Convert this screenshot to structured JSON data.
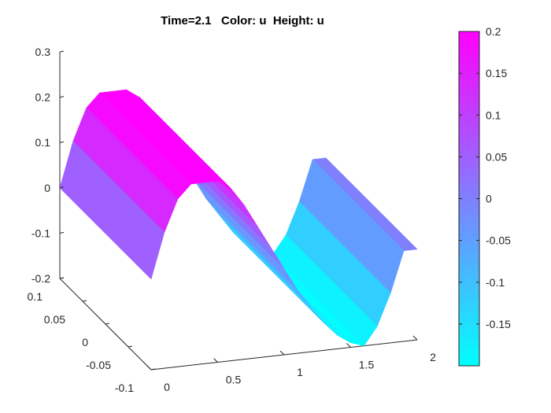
{
  "chart_data": {
    "type": "surface",
    "title": "Time=2.1   Color: u  Height: u",
    "colormap": {
      "name": "cool",
      "low_color": "#00ffff",
      "high_color": "#ff00ff"
    },
    "x_axis": {
      "label": "",
      "ticks": [
        "0",
        "0.5",
        "1",
        "1.5",
        "2"
      ],
      "range": [
        0,
        2
      ]
    },
    "y_axis": {
      "label": "",
      "ticks": [
        "-0.1",
        "-0.05",
        "0",
        "0.05",
        "0.1"
      ],
      "range": [
        -0.1,
        0.1
      ]
    },
    "z_axis": {
      "label": "",
      "ticks": [
        "-0.2",
        "-0.1",
        "0",
        "0.1",
        "0.2",
        "0.3"
      ],
      "range": [
        -0.2,
        0.3
      ]
    },
    "colorbar": {
      "ticks": [
        "0.2",
        "0.15",
        "0.1",
        "0.05",
        "0",
        "-0.05",
        "-0.1",
        "-0.15"
      ],
      "range": [
        -0.2,
        0.2
      ]
    },
    "x": [
      0,
      0.1,
      0.2,
      0.3,
      0.4,
      0.5,
      0.6,
      0.7,
      0.8,
      0.9,
      1.0,
      1.1,
      1.2,
      1.3,
      1.4,
      1.5,
      1.6,
      1.7,
      1.8,
      1.9,
      2.0
    ],
    "u": [
      0,
      0.1,
      0.17,
      0.2,
      0.2,
      0.2,
      0.18,
      0.14,
      0.09,
      0.04,
      -0.01,
      -0.06,
      -0.1,
      -0.14,
      -0.17,
      -0.19,
      -0.2,
      -0.16,
      -0.09,
      0.0,
      0.0
    ],
    "u_note_constant_in_y": true
  }
}
